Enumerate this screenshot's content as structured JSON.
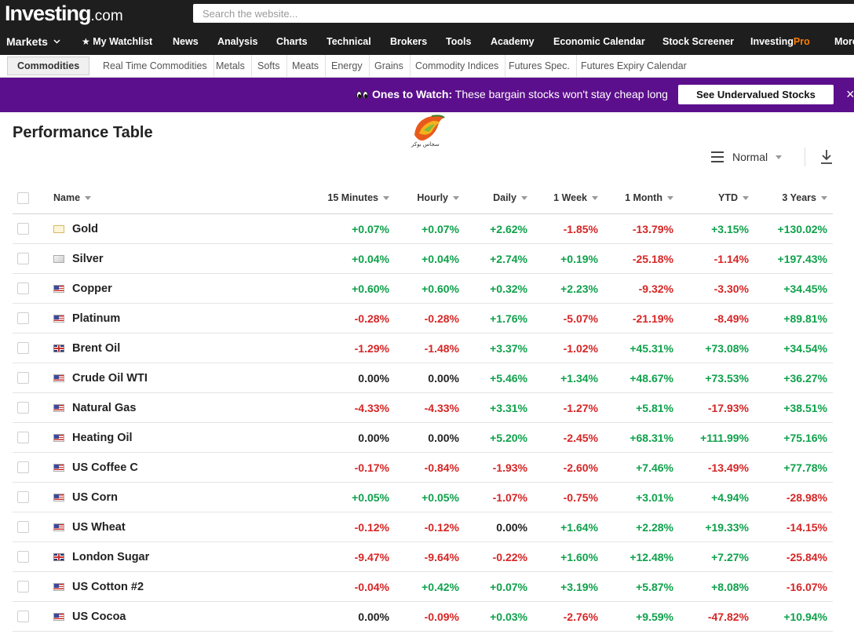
{
  "header": {
    "logo_main": "Investing",
    "logo_suffix": ".com",
    "search_placeholder": "Search the website..."
  },
  "nav": {
    "markets": "Markets",
    "watchlist": "My Watchlist",
    "news": "News",
    "analysis": "Analysis",
    "charts": "Charts",
    "technical": "Technical",
    "brokers": "Brokers",
    "tools": "Tools",
    "academy": "Academy",
    "economic_calendar": "Economic Calendar",
    "stock_screener": "Stock Screener",
    "pro_prefix": "Investing",
    "pro_suffix": "Pro",
    "more": "More"
  },
  "subnav": {
    "commodities": "Commodities",
    "real_time": "Real Time Commodities",
    "metals": "Metals",
    "softs": "Softs",
    "meats": "Meats",
    "energy": "Energy",
    "grains": "Grains",
    "indices": "Commodity Indices",
    "futures_spec": "Futures Spec.",
    "futures_expiry": "Futures Expiry Calendar"
  },
  "banner": {
    "lead": "Ones to Watch:",
    "text": " These bargain stocks won't stay cheap long",
    "button": "See Undervalued Stocks",
    "close": "×"
  },
  "page": {
    "title": "Performance Table",
    "view": "Normal",
    "watermark": "سجاس بوکر"
  },
  "table": {
    "headers": {
      "name": "Name",
      "m15": "15 Minutes",
      "hourly": "Hourly",
      "daily": "Daily",
      "week": "1 Week",
      "month": "1 Month",
      "ytd": "YTD",
      "y3": "3 Years"
    },
    "rows": [
      {
        "name": "Gold",
        "flag": "gold",
        "m15": "+0.07%",
        "hourly": "+0.07%",
        "daily": "+2.62%",
        "week": "-1.85%",
        "month": "-13.79%",
        "ytd": "+3.15%",
        "y3": "+130.02%"
      },
      {
        "name": "Silver",
        "flag": "silver",
        "m15": "+0.04%",
        "hourly": "+0.04%",
        "daily": "+2.74%",
        "week": "+0.19%",
        "month": "-25.18%",
        "ytd": "-1.14%",
        "y3": "+197.43%"
      },
      {
        "name": "Copper",
        "flag": "us",
        "m15": "+0.60%",
        "hourly": "+0.60%",
        "daily": "+0.32%",
        "week": "+2.23%",
        "month": "-9.32%",
        "ytd": "-3.30%",
        "y3": "+34.45%"
      },
      {
        "name": "Platinum",
        "flag": "us",
        "m15": "-0.28%",
        "hourly": "-0.28%",
        "daily": "+1.76%",
        "week": "-5.07%",
        "month": "-21.19%",
        "ytd": "-8.49%",
        "y3": "+89.81%"
      },
      {
        "name": "Brent Oil",
        "flag": "uk",
        "m15": "-1.29%",
        "hourly": "-1.48%",
        "daily": "+3.37%",
        "week": "-1.02%",
        "month": "+45.31%",
        "ytd": "+73.08%",
        "y3": "+34.54%"
      },
      {
        "name": "Crude Oil WTI",
        "flag": "us",
        "m15": "0.00%",
        "hourly": "0.00%",
        "daily": "+5.46%",
        "week": "+1.34%",
        "month": "+48.67%",
        "ytd": "+73.53%",
        "y3": "+36.27%"
      },
      {
        "name": "Natural Gas",
        "flag": "us",
        "m15": "-4.33%",
        "hourly": "-4.33%",
        "daily": "+3.31%",
        "week": "-1.27%",
        "month": "+5.81%",
        "ytd": "-17.93%",
        "y3": "+38.51%"
      },
      {
        "name": "Heating Oil",
        "flag": "us",
        "m15": "0.00%",
        "hourly": "0.00%",
        "daily": "+5.20%",
        "week": "-2.45%",
        "month": "+68.31%",
        "ytd": "+111.99%",
        "y3": "+75.16%"
      },
      {
        "name": "US Coffee C",
        "flag": "us",
        "m15": "-0.17%",
        "hourly": "-0.84%",
        "daily": "-1.93%",
        "week": "-2.60%",
        "month": "+7.46%",
        "ytd": "-13.49%",
        "y3": "+77.78%"
      },
      {
        "name": "US Corn",
        "flag": "us",
        "m15": "+0.05%",
        "hourly": "+0.05%",
        "daily": "-1.07%",
        "week": "-0.75%",
        "month": "+3.01%",
        "ytd": "+4.94%",
        "y3": "-28.98%"
      },
      {
        "name": "US Wheat",
        "flag": "us",
        "m15": "-0.12%",
        "hourly": "-0.12%",
        "daily": "0.00%",
        "week": "+1.64%",
        "month": "+2.28%",
        "ytd": "+19.33%",
        "y3": "-14.15%"
      },
      {
        "name": "London Sugar",
        "flag": "uk",
        "m15": "-9.47%",
        "hourly": "-9.64%",
        "daily": "-0.22%",
        "week": "+1.60%",
        "month": "+12.48%",
        "ytd": "+7.27%",
        "y3": "-25.84%"
      },
      {
        "name": "US Cotton #2",
        "flag": "us",
        "m15": "-0.04%",
        "hourly": "+0.42%",
        "daily": "+0.07%",
        "week": "+3.19%",
        "month": "+5.87%",
        "ytd": "+8.08%",
        "y3": "-16.07%"
      },
      {
        "name": "US Cocoa",
        "flag": "us",
        "m15": "0.00%",
        "hourly": "-0.09%",
        "daily": "+0.03%",
        "week": "-2.76%",
        "month": "+9.59%",
        "ytd": "-47.82%",
        "y3": "+10.94%"
      }
    ]
  },
  "colors": {
    "positive": "#0ea14b",
    "negative": "#d62525",
    "banner": "#5c0f8c",
    "header": "#1e1e1e",
    "pro_accent": "#ff7a00"
  }
}
